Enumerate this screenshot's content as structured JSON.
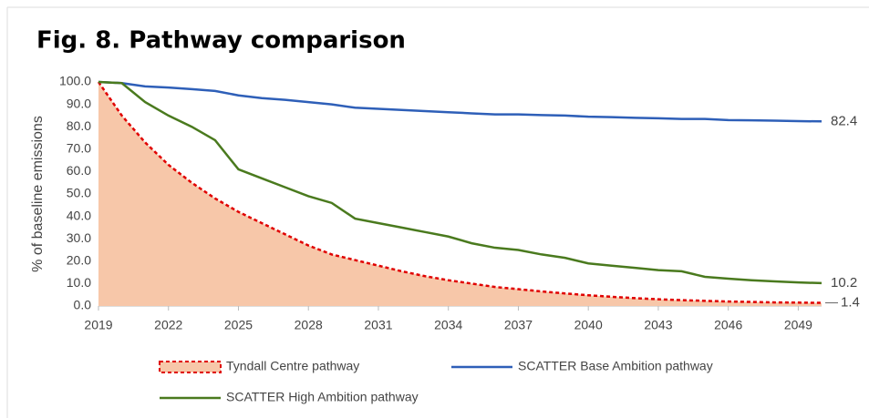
{
  "chart_data": {
    "type": "line",
    "title": "Fig. 8. Pathway comparison",
    "ylabel": "% of baseline emissions",
    "x": [
      2019,
      2020,
      2021,
      2022,
      2023,
      2024,
      2025,
      2026,
      2027,
      2028,
      2029,
      2030,
      2031,
      2032,
      2033,
      2034,
      2035,
      2036,
      2037,
      2038,
      2039,
      2040,
      2041,
      2042,
      2043,
      2044,
      2045,
      2046,
      2047,
      2048,
      2049,
      2050
    ],
    "xlim": [
      2019,
      2050
    ],
    "xticks": [
      2019,
      2022,
      2025,
      2028,
      2031,
      2034,
      2037,
      2040,
      2043,
      2046,
      2049
    ],
    "ylim": [
      0,
      100
    ],
    "yticks": [
      {
        "value": 0,
        "label": "0.0"
      },
      {
        "value": 10,
        "label": "10.0"
      },
      {
        "value": 20,
        "label": "20.0"
      },
      {
        "value": 30,
        "label": "30.0"
      },
      {
        "value": 40,
        "label": "40.0"
      },
      {
        "value": 50,
        "label": "50.0"
      },
      {
        "value": 60,
        "label": "60.0"
      },
      {
        "value": 70,
        "label": "70.0"
      },
      {
        "value": 80,
        "label": "80.0"
      },
      {
        "value": 90,
        "label": "90.0"
      },
      {
        "value": 100,
        "label": "100.0"
      }
    ],
    "series": [
      {
        "name": "Tyndall Centre pathway",
        "color": "#e00000",
        "fill": "#f7c7a9",
        "style": "dashed-area",
        "values": [
          100,
          85,
          73,
          63,
          55,
          48,
          42,
          37,
          32,
          27,
          23,
          20.5,
          18,
          15.5,
          13.3,
          11.5,
          10,
          8.5,
          7.5,
          6.5,
          5.6,
          4.8,
          4.1,
          3.5,
          3,
          2.6,
          2.3,
          2,
          1.8,
          1.6,
          1.5,
          1.4
        ]
      },
      {
        "name": "SCATTER Base Ambition pathway",
        "color": "#2e5fb8",
        "style": "line",
        "values": [
          100,
          99.5,
          98,
          97.5,
          96.8,
          96,
          94,
          92.8,
          92,
          91,
          90,
          88.5,
          88,
          87.5,
          87,
          86.5,
          86,
          85.5,
          85.5,
          85.2,
          85,
          84.5,
          84.3,
          84,
          83.8,
          83.5,
          83.5,
          83,
          82.9,
          82.7,
          82.5,
          82.4
        ]
      },
      {
        "name": "SCATTER High Ambition pathway",
        "color": "#4a7a1e",
        "style": "line",
        "values": [
          100,
          99.5,
          91,
          85,
          80,
          74,
          61,
          57,
          53,
          49,
          46,
          39,
          37,
          35,
          33,
          31,
          28,
          26,
          25,
          23,
          21.5,
          19,
          18,
          17,
          16,
          15.5,
          13,
          12.2,
          11.5,
          11,
          10.5,
          10.2
        ]
      }
    ]
  }
}
